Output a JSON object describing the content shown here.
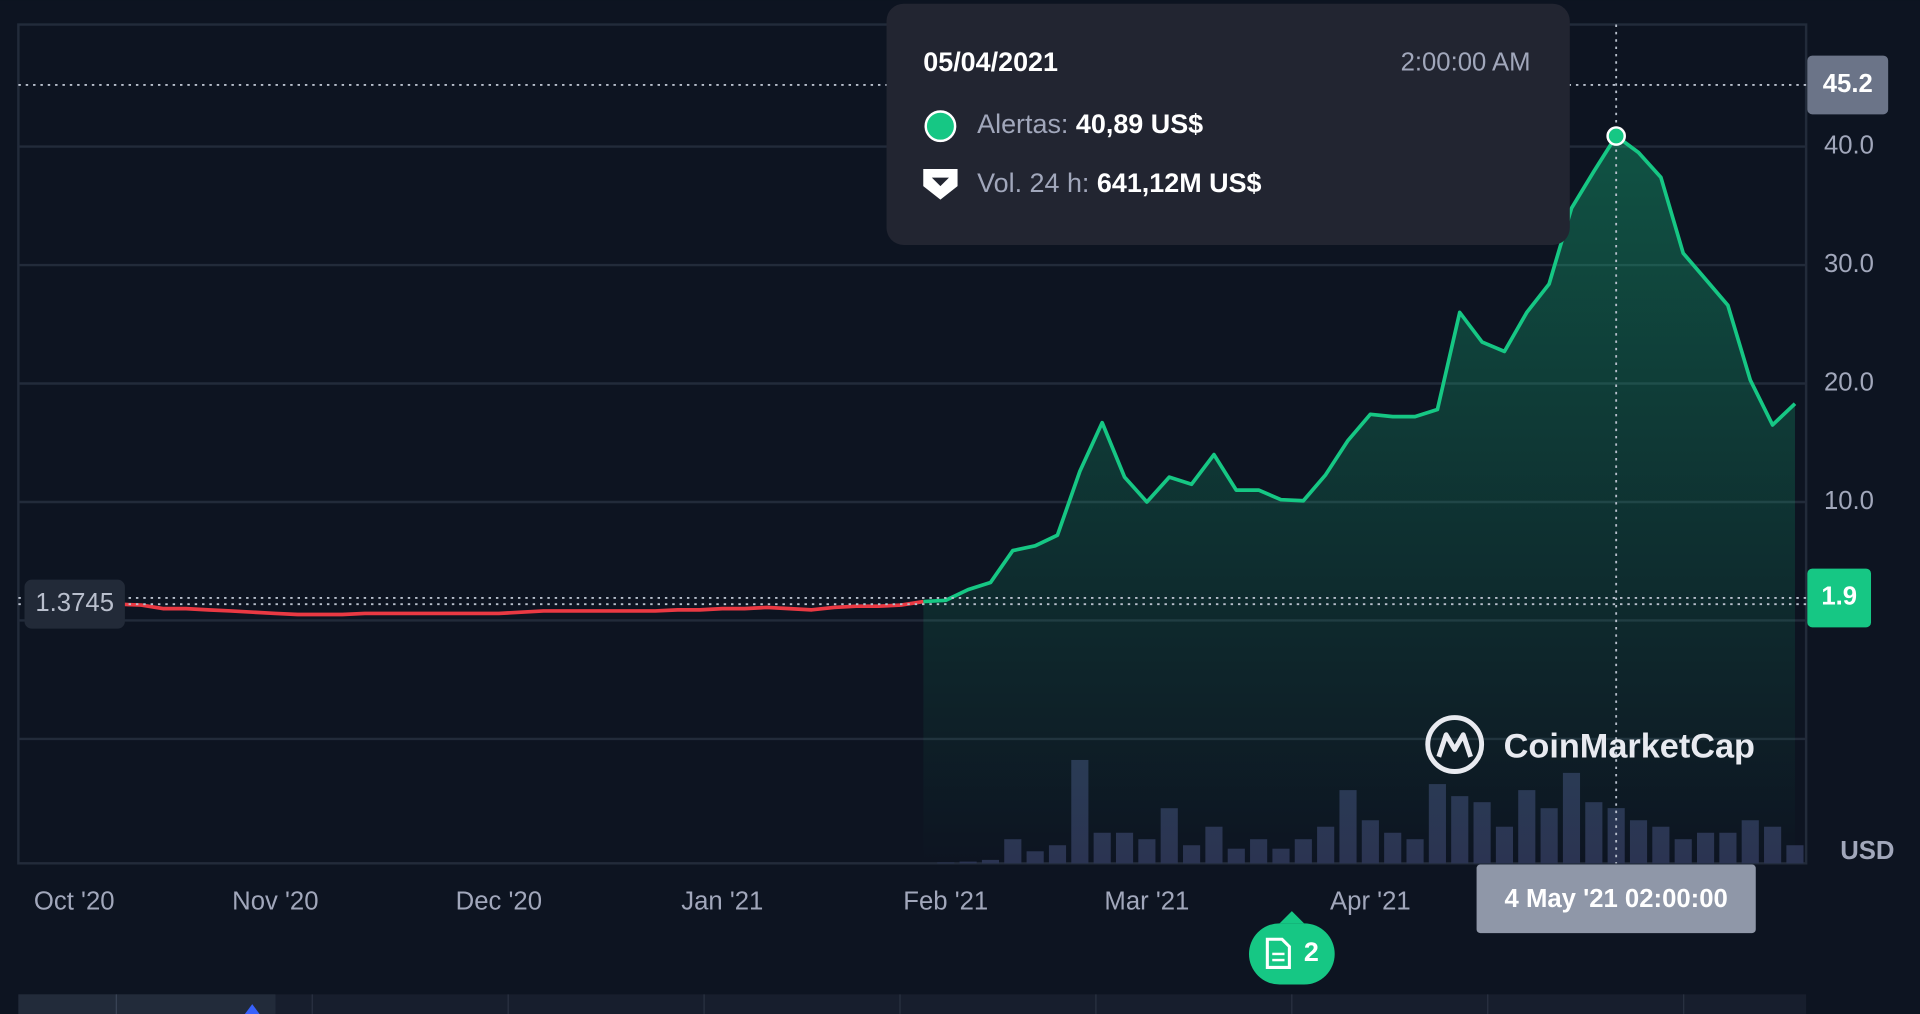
{
  "chart_data": {
    "type": "line",
    "categories": [
      null,
      null,
      "Oct '20",
      null,
      null,
      null,
      null,
      null,
      null,
      null,
      null,
      "Nov '20",
      null,
      null,
      null,
      null,
      null,
      null,
      null,
      null,
      null,
      "Dec '20",
      null,
      null,
      null,
      null,
      null,
      null,
      null,
      null,
      null,
      "Jan '21",
      null,
      null,
      null,
      null,
      null,
      null,
      null,
      null,
      null,
      "Feb '21",
      null,
      null,
      null,
      null,
      null,
      null,
      null,
      null,
      "Mar '21",
      null,
      null,
      null,
      null,
      null,
      null,
      null,
      null,
      null,
      "Apr '21",
      null,
      null,
      null,
      null,
      null,
      null,
      null,
      null,
      null,
      null,
      null,
      null,
      null,
      null,
      null,
      null,
      null,
      null,
      null
    ],
    "values": [
      null,
      null,
      null,
      null,
      1.37,
      1.3,
      1.0,
      1.0,
      0.9,
      0.8,
      0.7,
      0.6,
      0.5,
      0.5,
      0.5,
      0.6,
      0.6,
      0.6,
      0.6,
      0.6,
      0.6,
      0.6,
      0.7,
      0.8,
      0.8,
      0.8,
      0.8,
      0.8,
      0.8,
      0.9,
      0.9,
      1.0,
      1.0,
      1.1,
      1.0,
      0.9,
      1.1,
      1.2,
      1.2,
      1.3,
      1.6,
      1.7,
      2.6,
      3.2,
      5.9,
      6.3,
      7.2,
      12.6,
      16.7,
      12.1,
      10.0,
      12.1,
      11.5,
      14.0,
      11.0,
      11.0,
      10.2,
      10.1,
      12.3,
      15.2,
      17.4,
      17.2,
      17.2,
      17.8,
      26.0,
      23.5,
      22.7,
      26.0,
      28.4,
      34.8,
      37.9,
      40.89,
      39.5,
      37.4,
      31.0,
      28.8,
      26.6,
      20.3,
      16.5,
      18.3
    ],
    "volume": [
      null,
      null,
      null,
      null,
      null,
      null,
      null,
      null,
      null,
      null,
      null,
      null,
      null,
      null,
      null,
      null,
      null,
      null,
      null,
      null,
      null,
      null,
      null,
      null,
      null,
      null,
      null,
      null,
      null,
      null,
      null,
      null,
      null,
      null,
      null,
      null,
      null,
      null,
      null,
      null,
      null,
      10,
      20,
      40,
      280,
      140,
      210,
      1200,
      355,
      355,
      280,
      640,
      210,
      425,
      170,
      280,
      170,
      280,
      425,
      850,
      500,
      355,
      280,
      920,
      780,
      710,
      425,
      850,
      640,
      1050,
      710,
      641,
      500,
      425,
      280,
      355,
      355,
      500,
      425,
      210
    ],
    "volume_lim": [
      0,
      1450
    ],
    "up_color": "#16c784",
    "down_color": "#ea3943",
    "volume_color": "#2b3452",
    "ylim": [
      -20.5,
      50.3
    ],
    "yticks": [
      {
        "value": 10,
        "label": "10.0"
      },
      {
        "value": 20,
        "label": "20.0"
      },
      {
        "value": 30,
        "label": "30.0"
      },
      {
        "value": 40,
        "label": "40.0"
      }
    ],
    "ygrid": [
      -10,
      0
    ],
    "grid": true,
    "baseline": 1.3745,
    "high": 45.2,
    "last": 1.9,
    "currency": "USD",
    "crosshair_index": 71,
    "crosshair_label": "4 May '21 02:00:00",
    "tooltip": {
      "date": "05/04/2021",
      "time": "2:00:00 AM",
      "price_label": "Alertas:",
      "price": "40,89 US$",
      "volume_label": "Vol. 24 h:",
      "volume": "641,12M US$"
    },
    "watermark": "CoinMarketCap",
    "notes_count": 2
  }
}
